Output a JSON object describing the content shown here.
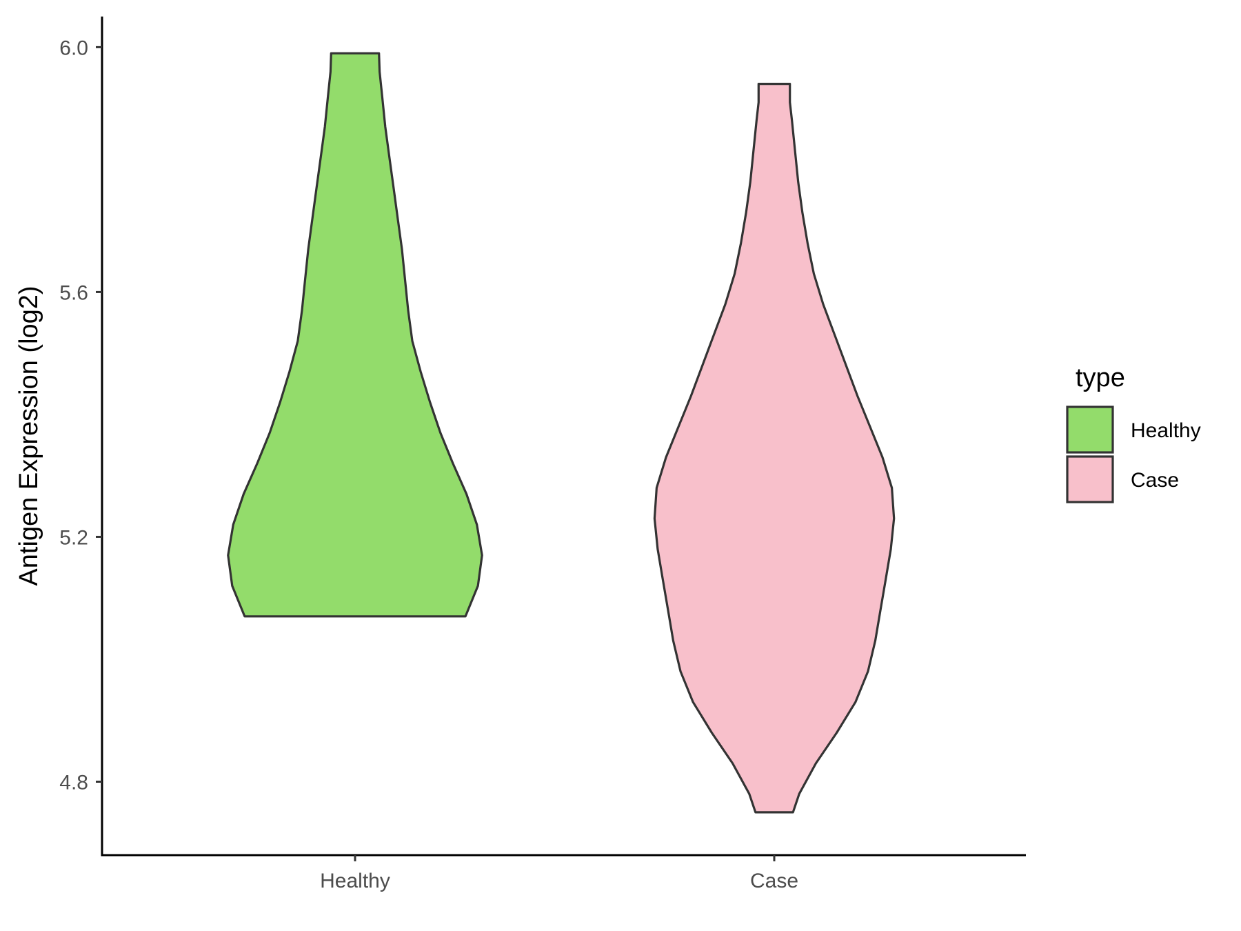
{
  "chart_data": {
    "type": "violin",
    "ylabel": "Antigen Expression (log2)",
    "xlabel": "",
    "categories": [
      "Healthy",
      "Case"
    ],
    "yticks": [
      4.8,
      5.2,
      5.6,
      6.0
    ],
    "ylim": [
      4.68,
      6.05
    ],
    "grid": false,
    "legend": {
      "title": "type",
      "placement": "right",
      "entries": [
        "Healthy",
        "Case"
      ]
    },
    "series": [
      {
        "name": "Healthy",
        "color": "#93DC6B",
        "min": 5.07,
        "max": 5.99,
        "profile": [
          [
            5.07,
            0.53
          ],
          [
            5.12,
            0.59
          ],
          [
            5.17,
            0.61
          ],
          [
            5.22,
            0.585
          ],
          [
            5.27,
            0.535
          ],
          [
            5.32,
            0.47
          ],
          [
            5.37,
            0.41
          ],
          [
            5.42,
            0.36
          ],
          [
            5.47,
            0.315
          ],
          [
            5.52,
            0.275
          ],
          [
            5.57,
            0.255
          ],
          [
            5.62,
            0.24
          ],
          [
            5.67,
            0.225
          ],
          [
            5.72,
            0.205
          ],
          [
            5.77,
            0.185
          ],
          [
            5.82,
            0.165
          ],
          [
            5.87,
            0.145
          ],
          [
            5.92,
            0.13
          ],
          [
            5.96,
            0.118
          ],
          [
            5.99,
            0.115
          ]
        ]
      },
      {
        "name": "Case",
        "color": "#F8C0CB",
        "min": 4.75,
        "max": 5.94,
        "profile": [
          [
            4.75,
            0.09
          ],
          [
            4.78,
            0.12
          ],
          [
            4.83,
            0.2
          ],
          [
            4.88,
            0.3
          ],
          [
            4.93,
            0.39
          ],
          [
            4.98,
            0.45
          ],
          [
            5.03,
            0.485
          ],
          [
            5.08,
            0.51
          ],
          [
            5.13,
            0.535
          ],
          [
            5.18,
            0.56
          ],
          [
            5.23,
            0.575
          ],
          [
            5.28,
            0.565
          ],
          [
            5.33,
            0.52
          ],
          [
            5.38,
            0.46
          ],
          [
            5.43,
            0.4
          ],
          [
            5.48,
            0.345
          ],
          [
            5.53,
            0.29
          ],
          [
            5.58,
            0.235
          ],
          [
            5.63,
            0.19
          ],
          [
            5.68,
            0.16
          ],
          [
            5.73,
            0.135
          ],
          [
            5.78,
            0.115
          ],
          [
            5.83,
            0.1
          ],
          [
            5.88,
            0.085
          ],
          [
            5.91,
            0.075
          ],
          [
            5.94,
            0.075
          ]
        ]
      }
    ]
  }
}
